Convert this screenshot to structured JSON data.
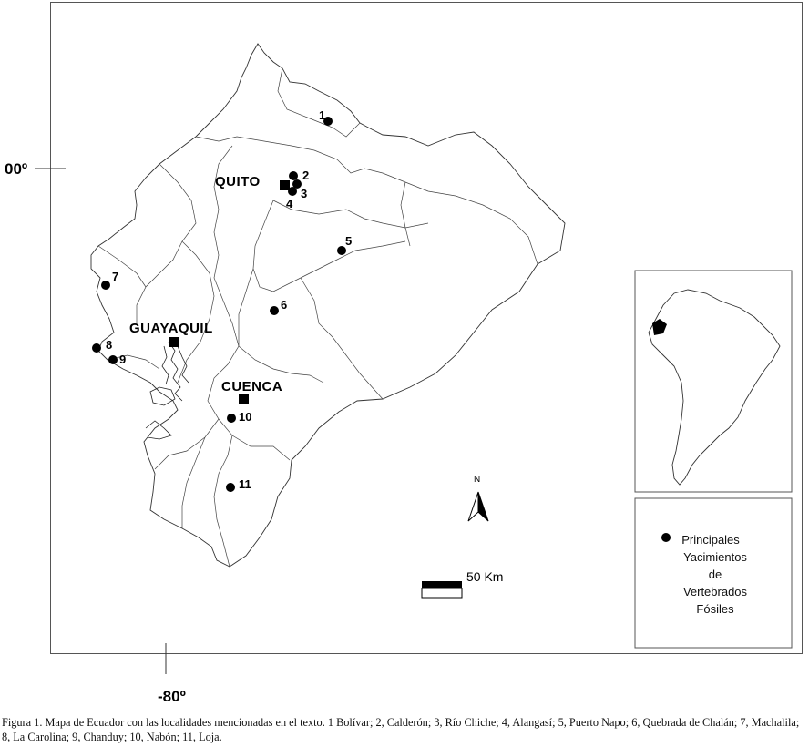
{
  "map": {
    "cities": [
      {
        "id": "quito",
        "name": "QUITO"
      },
      {
        "id": "guayaquil",
        "name": "GUAYAQUIL"
      },
      {
        "id": "cuenca",
        "name": "CUENCA"
      }
    ],
    "localities": [
      {
        "number": "1"
      },
      {
        "number": "2"
      },
      {
        "number": "3"
      },
      {
        "number": "4"
      },
      {
        "number": "5"
      },
      {
        "number": "6"
      },
      {
        "number": "7"
      },
      {
        "number": "8"
      },
      {
        "number": "9"
      },
      {
        "number": "10"
      },
      {
        "number": "11"
      }
    ],
    "coordinates": {
      "latitude_label": "00º",
      "longitude_label": "-80º"
    },
    "north_arrow_label": "N",
    "scale_bar_label": "50 Km"
  },
  "legend": {
    "lines": [
      "Principales",
      "Yacimientos",
      "de",
      "Vertebrados",
      "Fósiles"
    ]
  },
  "caption": {
    "text": "Figura 1. Mapa de Ecuador con las localidades mencionadas en el texto. 1 Bolívar; 2, Calderón; 3, Río Chiche; 4, Alangasí; 5, Puerto Napo; 6, Quebrada de Chalán; 7, Machalila; 8, La Carolina; 9, Chanduy; 10, Nabón; 11, Loja."
  },
  "colors": {
    "ink": "#000000",
    "border": "#555555",
    "background": "#ffffff"
  }
}
